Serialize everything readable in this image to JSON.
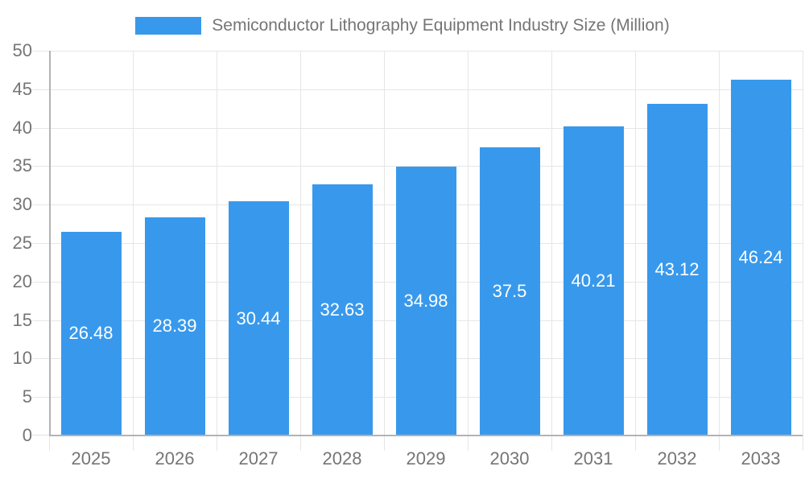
{
  "chart_data": {
    "type": "bar",
    "title": "Semiconductor Lithography Equipment Industry Size (Million)",
    "legend": {
      "position": "top",
      "label": "Semiconductor Lithography Equipment Industry Size (Million)"
    },
    "categories": [
      "2025",
      "2026",
      "2027",
      "2028",
      "2029",
      "2030",
      "2031",
      "2032",
      "2033"
    ],
    "values": [
      26.48,
      28.39,
      30.44,
      32.63,
      34.98,
      37.5,
      40.21,
      43.12,
      46.24
    ],
    "value_labels": [
      "26.48",
      "28.39",
      "30.44",
      "32.63",
      "34.98",
      "37.5",
      "40.21",
      "43.12",
      "46.24"
    ],
    "xlabel": "",
    "ylabel": "",
    "ylim": [
      0,
      50
    ],
    "yticks": [
      0,
      5,
      10,
      15,
      20,
      25,
      30,
      35,
      40,
      45,
      50
    ],
    "grid": "on",
    "colors": {
      "bar": "#3899EC",
      "value_label_text": "#FFFFFF",
      "axis_text": "#757575",
      "legend_text": "#757575",
      "gridline": "#E6E6E6",
      "tick": "#E0E0E0",
      "axis_line": "#B3B3B3",
      "background": "#FFFFFF"
    }
  }
}
